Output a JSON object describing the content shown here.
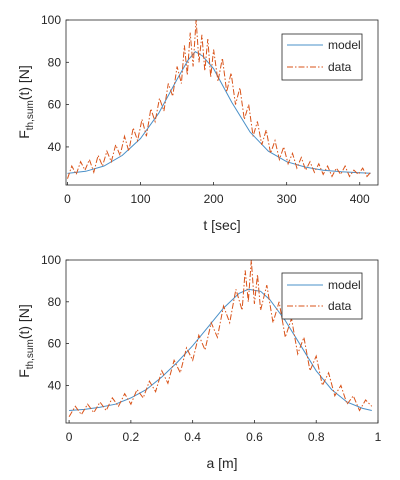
{
  "chart_data": [
    {
      "type": "line",
      "xlabel": "t [sec]",
      "ylabel_main": "F",
      "ylabel_sub": "th,sum",
      "ylabel_rest": "(t) [N]",
      "xlim": [
        -2,
        425
      ],
      "ylim": [
        22,
        100
      ],
      "xticks": [
        0,
        100,
        200,
        300,
        400
      ],
      "yticks": [
        40,
        60,
        80,
        100
      ],
      "grid": false,
      "legend_position": "top-right",
      "series": [
        {
          "name": "model",
          "color": "#4a90c8",
          "style": "solid",
          "x": [
            0,
            25,
            50,
            75,
            100,
            125,
            150,
            165,
            175,
            185,
            200,
            225,
            250,
            275,
            300,
            325,
            350,
            375,
            400,
            415
          ],
          "y": [
            27.5,
            28.5,
            31,
            36,
            44,
            56,
            72,
            81,
            85,
            83,
            77,
            61,
            47,
            38,
            33,
            30.5,
            29,
            28.3,
            27.8,
            27.6
          ]
        },
        {
          "name": "data",
          "color": "#d95319",
          "style": "dashdot",
          "x": [
            0,
            6,
            12,
            18,
            24,
            30,
            36,
            42,
            48,
            54,
            60,
            66,
            72,
            78,
            84,
            90,
            96,
            102,
            108,
            114,
            120,
            126,
            132,
            138,
            144,
            150,
            156,
            160,
            164,
            168,
            172,
            176,
            180,
            184,
            188,
            192,
            196,
            200,
            206,
            212,
            218,
            224,
            230,
            236,
            242,
            248,
            254,
            260,
            266,
            272,
            278,
            284,
            290,
            296,
            302,
            308,
            314,
            320,
            326,
            332,
            338,
            344,
            350,
            356,
            362,
            368,
            374,
            380,
            386,
            392,
            398,
            404,
            410,
            415
          ],
          "y": [
            25,
            31,
            27,
            33,
            29,
            34,
            28,
            36,
            31,
            38,
            33,
            41,
            36,
            45,
            38,
            49,
            43,
            53,
            45,
            58,
            52,
            63,
            57,
            70,
            64,
            78,
            70,
            88,
            74,
            94,
            78,
            100,
            80,
            93,
            76,
            91,
            73,
            86,
            71,
            82,
            66,
            75,
            60,
            68,
            53,
            60,
            45,
            52,
            41,
            48,
            37,
            43,
            34,
            40,
            32,
            37,
            30,
            35,
            29,
            33,
            28,
            32,
            27,
            31,
            26,
            30,
            27,
            31,
            26,
            29,
            27,
            30,
            26,
            28
          ]
        }
      ]
    },
    {
      "type": "line",
      "xlabel": "a [m]",
      "ylabel_main": "F",
      "ylabel_sub": "th,sum",
      "ylabel_rest": "(t) [N]",
      "xlim": [
        -0.01,
        1.0
      ],
      "ylim": [
        22,
        100
      ],
      "xticks": [
        "0",
        "0.2",
        "0.4",
        "0.6",
        "0.8",
        "1"
      ],
      "xtick_values": [
        0,
        0.2,
        0.4,
        0.6,
        0.8,
        1.0
      ],
      "yticks": [
        40,
        60,
        80,
        100
      ],
      "grid": false,
      "legend_position": "top-right",
      "series": [
        {
          "name": "model",
          "color": "#4a90c8",
          "style": "solid",
          "x": [
            0,
            0.05,
            0.1,
            0.15,
            0.2,
            0.25,
            0.3,
            0.35,
            0.4,
            0.45,
            0.5,
            0.55,
            0.58,
            0.62,
            0.65,
            0.7,
            0.75,
            0.8,
            0.85,
            0.9,
            0.95,
            0.98
          ],
          "y": [
            28,
            28.5,
            29.5,
            31,
            34,
            38,
            44,
            51,
            59,
            68,
            77,
            84,
            86,
            85,
            81,
            71,
            59,
            47,
            38,
            32,
            29,
            28
          ]
        },
        {
          "name": "data",
          "color": "#d95319",
          "style": "dashdot",
          "x": [
            0,
            0.02,
            0.04,
            0.06,
            0.08,
            0.1,
            0.12,
            0.14,
            0.16,
            0.18,
            0.2,
            0.22,
            0.24,
            0.26,
            0.28,
            0.3,
            0.32,
            0.34,
            0.36,
            0.38,
            0.4,
            0.42,
            0.44,
            0.46,
            0.48,
            0.5,
            0.52,
            0.54,
            0.56,
            0.57,
            0.58,
            0.59,
            0.6,
            0.61,
            0.62,
            0.64,
            0.66,
            0.68,
            0.7,
            0.72,
            0.74,
            0.76,
            0.78,
            0.8,
            0.82,
            0.84,
            0.86,
            0.88,
            0.9,
            0.92,
            0.94,
            0.96,
            0.98
          ],
          "y": [
            25,
            30,
            26,
            31,
            27,
            32,
            28,
            34,
            30,
            36,
            31,
            38,
            34,
            42,
            37,
            47,
            41,
            52,
            46,
            58,
            52,
            64,
            57,
            70,
            63,
            78,
            70,
            86,
            76,
            95,
            80,
            100,
            79,
            93,
            76,
            88,
            70,
            80,
            63,
            72,
            55,
            63,
            47,
            54,
            40,
            46,
            35,
            40,
            31,
            35,
            28,
            33,
            30
          ]
        }
      ]
    }
  ]
}
